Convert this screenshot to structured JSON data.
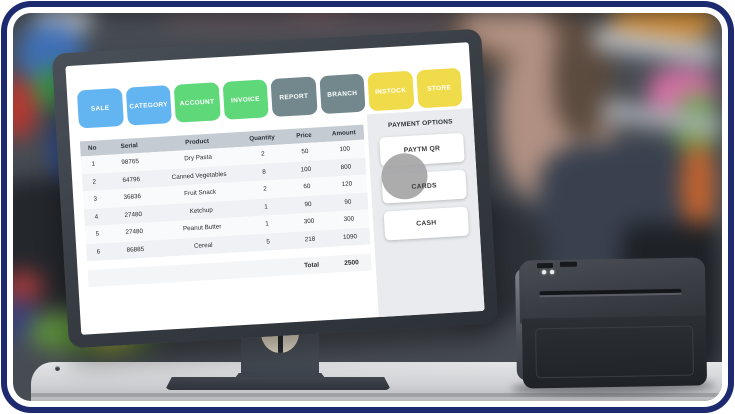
{
  "frame": {
    "border_color": "#1d2a70"
  },
  "screen": {
    "nav_buttons": [
      {
        "label": "SALE",
        "color": "#63b5f1"
      },
      {
        "label": "CATEGORY",
        "color": "#63b5f1"
      },
      {
        "label": "ACCOUNT",
        "color": "#5fd87a"
      },
      {
        "label": "INVOICE",
        "color": "#5fd87a"
      },
      {
        "label": "REPORT",
        "color": "#73888c"
      },
      {
        "label": "BRANCH",
        "color": "#73888c"
      },
      {
        "label": "INSTOCK",
        "color": "#f0dc4b"
      },
      {
        "label": "STORE",
        "color": "#f0dc4b"
      }
    ],
    "table": {
      "headers": [
        "No",
        "Serial",
        "Product",
        "Quantity",
        "Price",
        "Amount"
      ],
      "rows": [
        [
          "1",
          "98765",
          "Dry Pasta",
          "2",
          "50",
          "100"
        ],
        [
          "2",
          "64796",
          "Canned Vegetables",
          "8",
          "100",
          "800"
        ],
        [
          "3",
          "36836",
          "Fruit Snack",
          "2",
          "60",
          "120"
        ],
        [
          "4",
          "27480",
          "Ketchup",
          "1",
          "90",
          "90"
        ],
        [
          "5",
          "27480",
          "Peanut Butter",
          "1",
          "300",
          "300"
        ],
        [
          "6",
          "86885",
          "Cereal",
          "5",
          "218",
          "1090"
        ]
      ],
      "total_label": "Total",
      "total_value": "2500"
    },
    "payment": {
      "title": "PAYMENT OPTIONS",
      "options": [
        "PAYTM QR",
        "CARDS",
        "CASH"
      ]
    }
  }
}
